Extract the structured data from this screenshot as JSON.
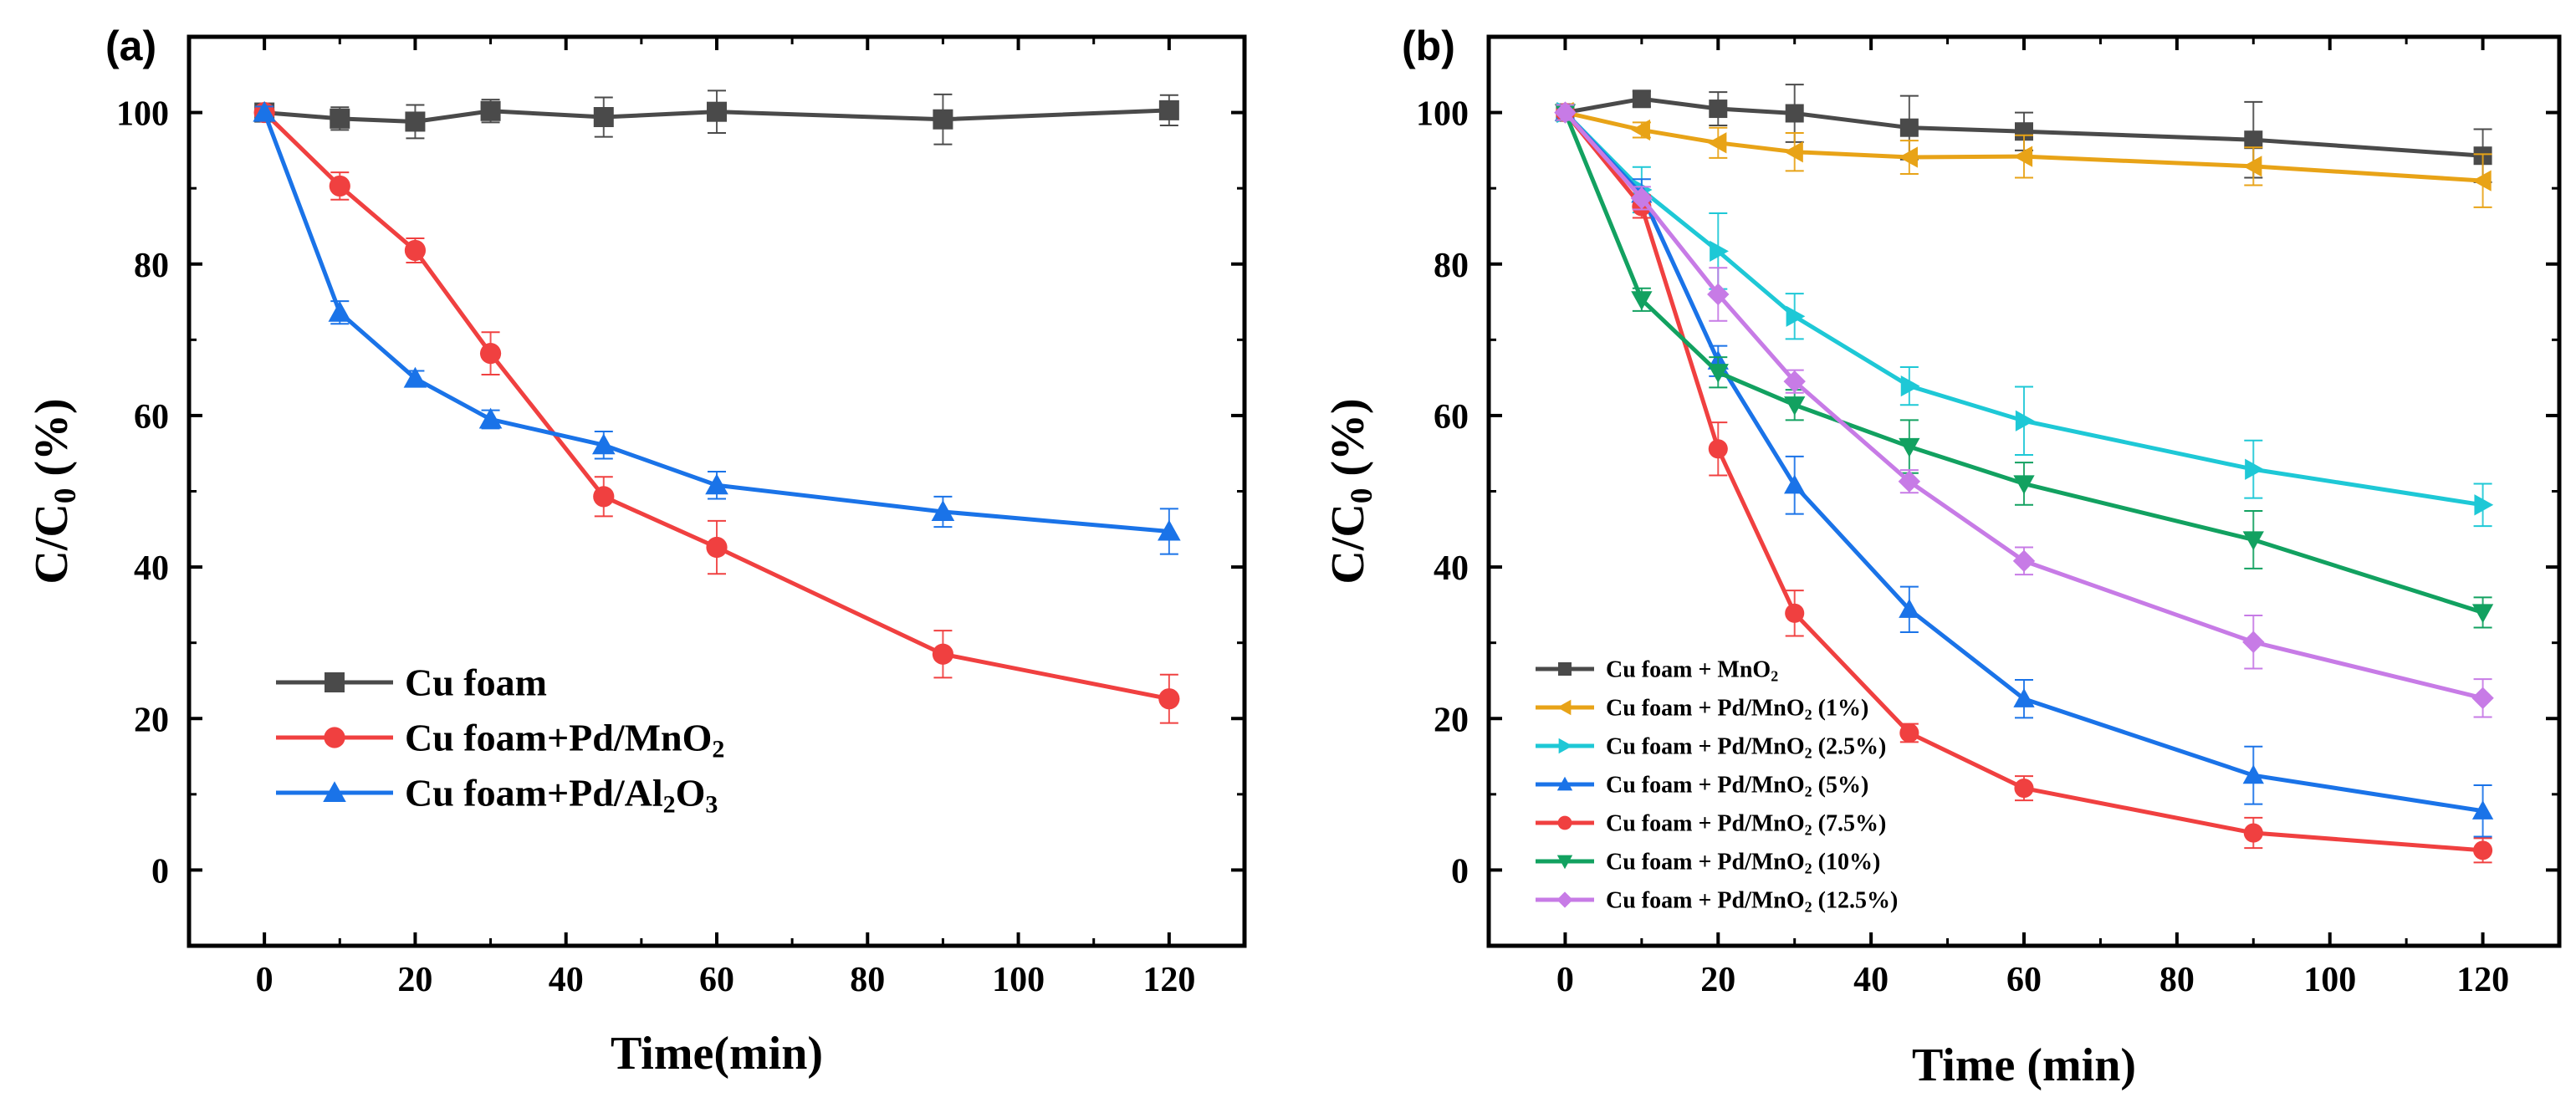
{
  "chart_data": [
    {
      "type": "line",
      "panel_label": "(a)",
      "title": "",
      "xlabel": "Time(min)",
      "ylabel": "C/C",
      "ylabel_sub": "0",
      "ylabel_unit": " (%)",
      "xlim": [
        -10,
        130
      ],
      "ylim": [
        -10,
        110
      ],
      "xticks": [
        0,
        20,
        40,
        60,
        80,
        100,
        120
      ],
      "yticks": [
        0,
        20,
        40,
        60,
        80,
        100
      ],
      "legend_position": "lower-left",
      "series": [
        {
          "name": "Cu foam",
          "label_parts": [
            {
              "t": "Cu foam"
            }
          ],
          "color": "#4a4a4a",
          "marker": "square",
          "x": [
            0,
            10,
            20,
            30,
            45,
            60,
            90,
            120
          ],
          "y": [
            100,
            99.2,
            98.8,
            100.2,
            99.4,
            100.1,
            99.1,
            100.3
          ],
          "err": [
            1.0,
            1.5,
            2.2,
            1.5,
            2.6,
            2.8,
            3.3,
            2.0
          ]
        },
        {
          "name": "Cu foam+Pd/MnO2",
          "label_parts": [
            {
              "t": "Cu foam+Pd/MnO"
            },
            {
              "t": "2",
              "sub": true
            }
          ],
          "color": "#f04040",
          "marker": "circle",
          "x": [
            0,
            10,
            20,
            30,
            45,
            60,
            90,
            120
          ],
          "y": [
            100,
            90.3,
            81.8,
            68.2,
            49.3,
            42.6,
            28.5,
            22.6
          ],
          "err": [
            0.8,
            1.8,
            1.6,
            2.8,
            2.6,
            3.5,
            3.1,
            3.2
          ]
        },
        {
          "name": "Cu foam+Pd/Al2O3",
          "label_parts": [
            {
              "t": "Cu foam+Pd/Al"
            },
            {
              "t": "2",
              "sub": true
            },
            {
              "t": "O"
            },
            {
              "t": "3",
              "sub": true
            }
          ],
          "color": "#1a73e8",
          "marker": "triangle-up",
          "x": [
            0,
            10,
            20,
            30,
            45,
            60,
            90,
            120
          ],
          "y": [
            100,
            73.6,
            64.9,
            59.5,
            56.1,
            50.8,
            47.3,
            44.7
          ],
          "err": [
            0.8,
            1.5,
            1.0,
            1.2,
            1.8,
            1.8,
            2.0,
            3.0
          ]
        }
      ]
    },
    {
      "type": "line",
      "panel_label": "(b)",
      "title": "",
      "xlabel": "Time (min)",
      "ylabel": "C/C",
      "ylabel_sub": "0",
      "ylabel_unit": " (%)",
      "xlim": [
        -10,
        130
      ],
      "ylim": [
        -10,
        110
      ],
      "xticks": [
        0,
        20,
        40,
        60,
        80,
        100,
        120
      ],
      "yticks": [
        0,
        20,
        40,
        60,
        80,
        100
      ],
      "legend_position": "lower-left",
      "series": [
        {
          "name": "Cu foam + MnO2",
          "label_parts": [
            {
              "t": "Cu foam + MnO"
            },
            {
              "t": "2",
              "sub": true
            }
          ],
          "color": "#4a4a4a",
          "marker": "square",
          "x": [
            0,
            10,
            20,
            30,
            45,
            60,
            90,
            120
          ],
          "y": [
            100,
            101.8,
            100.5,
            99.9,
            98.0,
            97.5,
            96.4,
            94.3
          ],
          "err": [
            1.0,
            1.0,
            2.2,
            3.8,
            4.2,
            2.5,
            5.0,
            3.5
          ]
        },
        {
          "name": "Cu foam + Pd/MnO2 (1%)",
          "label_parts": [
            {
              "t": "Cu foam + Pd/MnO"
            },
            {
              "t": "2",
              "sub": true
            },
            {
              "t": " (1%)"
            }
          ],
          "color": "#e8a317",
          "marker": "triangle-left",
          "x": [
            0,
            10,
            20,
            30,
            45,
            60,
            90,
            120
          ],
          "y": [
            100,
            97.7,
            96.0,
            94.8,
            94.1,
            94.2,
            92.9,
            91.0
          ],
          "err": [
            1.0,
            1.0,
            2.0,
            2.5,
            2.2,
            2.8,
            2.5,
            3.5
          ]
        },
        {
          "name": "Cu foam + Pd/MnO2 (2.5%)",
          "label_parts": [
            {
              "t": "Cu foam + Pd/MnO"
            },
            {
              "t": "2",
              "sub": true
            },
            {
              "t": " (2.5%)"
            }
          ],
          "color": "#1ec8d6",
          "marker": "triangle-right",
          "x": [
            0,
            10,
            20,
            30,
            45,
            60,
            90,
            120
          ],
          "y": [
            100,
            89.8,
            81.7,
            73.1,
            63.9,
            59.3,
            52.9,
            48.2
          ],
          "err": [
            1.0,
            3.0,
            5.0,
            3.0,
            2.5,
            4.5,
            3.8,
            2.8
          ]
        },
        {
          "name": "Cu foam + Pd/MnO2 (5%)",
          "label_parts": [
            {
              "t": "Cu foam + Pd/MnO"
            },
            {
              "t": "2",
              "sub": true
            },
            {
              "t": " (5%)"
            }
          ],
          "color": "#1a73e8",
          "marker": "triangle-up",
          "x": [
            0,
            10,
            20,
            30,
            45,
            60,
            90,
            120
          ],
          "y": [
            100,
            89.2,
            67.2,
            50.8,
            34.4,
            22.6,
            12.5,
            7.8
          ],
          "err": [
            1.0,
            2.0,
            2.0,
            3.8,
            3.0,
            2.5,
            3.8,
            3.4
          ]
        },
        {
          "name": "Cu foam + Pd/MnO2 (7.5%)",
          "label_parts": [
            {
              "t": "Cu foam + Pd/MnO"
            },
            {
              "t": "2",
              "sub": true
            },
            {
              "t": " (7.5%)"
            }
          ],
          "color": "#f04040",
          "marker": "circle",
          "x": [
            0,
            10,
            20,
            30,
            45,
            60,
            90,
            120
          ],
          "y": [
            100,
            87.6,
            55.6,
            33.9,
            18.1,
            10.8,
            4.9,
            2.6
          ],
          "err": [
            1.0,
            1.5,
            3.5,
            3.0,
            1.2,
            1.6,
            2.0,
            1.6
          ]
        },
        {
          "name": "Cu foam + Pd/MnO2 (10%)",
          "label_parts": [
            {
              "t": "Cu foam + Pd/MnO"
            },
            {
              "t": "2",
              "sub": true
            },
            {
              "t": " (10%)"
            }
          ],
          "color": "#12a160",
          "marker": "triangle-down",
          "x": [
            0,
            10,
            20,
            30,
            45,
            60,
            90,
            120
          ],
          "y": [
            100,
            75.3,
            65.7,
            61.4,
            55.9,
            51.0,
            43.6,
            34.0
          ],
          "err": [
            1.0,
            1.5,
            2.0,
            2.0,
            3.5,
            2.8,
            3.8,
            2.0
          ]
        },
        {
          "name": "Cu foam + Pd/MnO2 (12.5%)",
          "label_parts": [
            {
              "t": "Cu foam + Pd/MnO"
            },
            {
              "t": "2",
              "sub": true
            },
            {
              "t": " (12.5%)"
            }
          ],
          "color": "#c77be6",
          "marker": "diamond",
          "x": [
            0,
            10,
            20,
            30,
            45,
            60,
            90,
            120
          ],
          "y": [
            100,
            88.7,
            76.0,
            64.5,
            51.3,
            40.8,
            30.1,
            22.7
          ],
          "err": [
            1.0,
            1.5,
            3.5,
            1.5,
            1.5,
            1.8,
            3.5,
            2.5
          ]
        }
      ]
    }
  ]
}
